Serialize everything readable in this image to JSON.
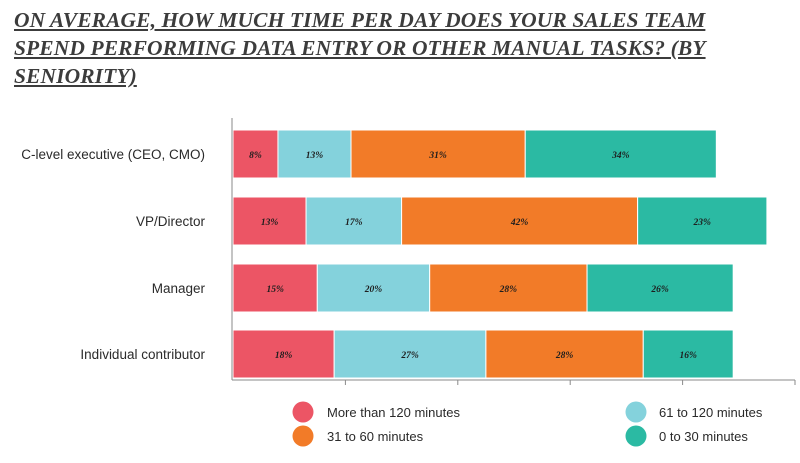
{
  "title": "On average, how much time per day does your sales team spend performing data entry or other manual tasks? (By seniority)",
  "chart_data": {
    "type": "bar",
    "orientation": "horizontal",
    "stacked": true,
    "title": "On average, how much time per day does your sales team spend performing data entry or other manual tasks? (By seniority)",
    "categories": [
      "C-level executive (CEO, CMO)",
      "VP/Director",
      "Manager",
      "Individual contributor"
    ],
    "series": [
      {
        "name": "More than 120 minutes",
        "color": "#ec5565",
        "values": [
          8,
          13,
          15,
          18
        ]
      },
      {
        "name": "61 to 120 minutes",
        "color": "#84d2dc",
        "values": [
          13,
          17,
          20,
          27
        ]
      },
      {
        "name": "31 to 60 minutes",
        "color": "#f27b28",
        "values": [
          31,
          42,
          28,
          28
        ]
      },
      {
        "name": "0 to 30 minutes",
        "color": "#2bbaa3",
        "values": [
          34,
          23,
          26,
          16
        ]
      }
    ],
    "value_suffix": "%",
    "xlim": [
      0,
      100
    ],
    "xlabel": "",
    "ylabel": "",
    "grid": false,
    "legend_position": "bottom"
  }
}
